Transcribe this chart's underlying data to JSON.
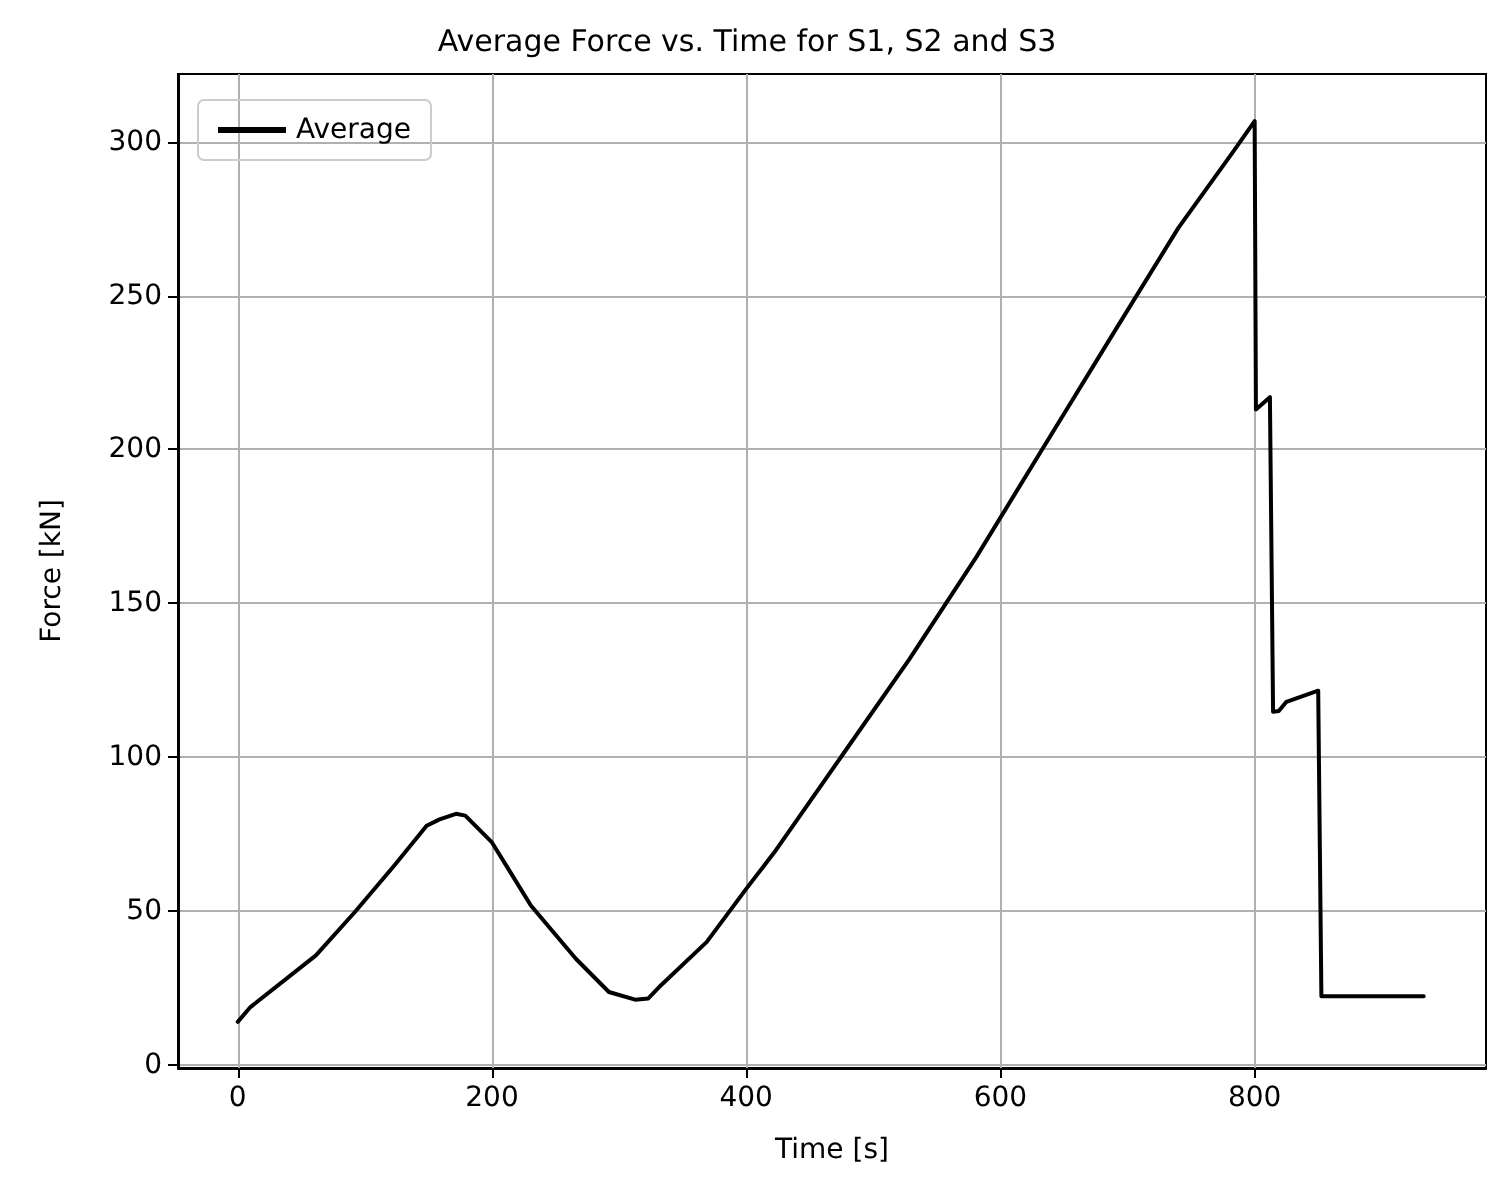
{
  "chart_data": {
    "type": "line",
    "title": "Average Force vs. Time for S1, S2 and S3",
    "xlabel": "Time [s]",
    "ylabel": "Force [kN]",
    "series": [
      {
        "name": "Average",
        "color": "#000000",
        "x": [
          0,
          10,
          61.5,
          92,
          123,
          148.6,
          158.8,
          171.7,
          179,
          200,
          230.6,
          266,
          292,
          312.6,
          323,
          333,
          369,
          400,
          422,
          475,
          528,
          581,
          634,
          687,
          740,
          783,
          800,
          801,
          812,
          814.5,
          819,
          825,
          850,
          852.5,
          878,
          933
        ],
        "values": [
          14,
          18.8,
          35.6,
          49.6,
          64.7,
          77.7,
          79.8,
          81.6,
          81,
          72.3,
          51.8,
          34.5,
          23.7,
          21.2,
          21.6,
          25.9,
          40,
          57.2,
          69,
          100.3,
          131.6,
          165,
          200.8,
          236.5,
          272,
          296.7,
          306.7,
          213,
          217,
          114.8,
          115,
          118,
          121.6,
          22.3,
          22.3,
          22.3
        ]
      }
    ],
    "xlim": [
      -47,
      982
    ],
    "xticks": [
      0,
      200,
      400,
      600,
      800
    ],
    "ylim": [
      -1,
      322
    ],
    "yticks": [
      0,
      50,
      100,
      150,
      200,
      250,
      300
    ],
    "grid": true,
    "legend": "top left",
    "marker": "none",
    "line_style": "solid"
  }
}
